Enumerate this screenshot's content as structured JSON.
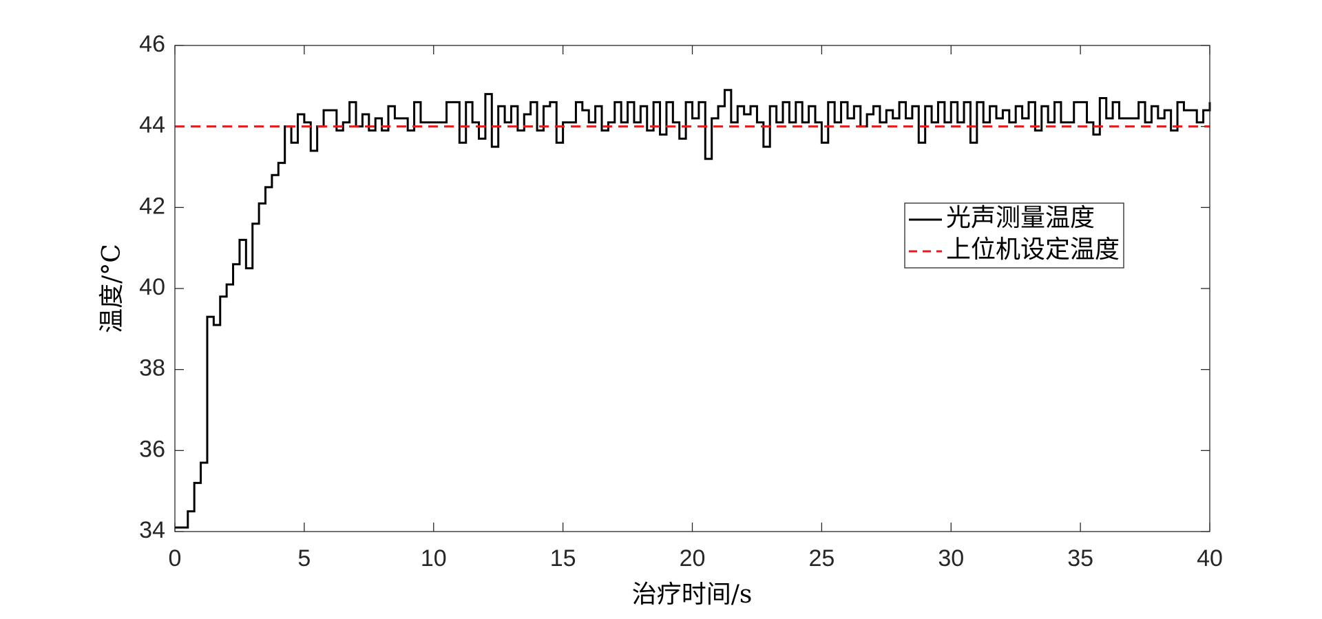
{
  "chart_data": {
    "type": "line",
    "step": true,
    "xlabel": "治疗时间/s",
    "ylabel": "温度/°C",
    "xlim": [
      0,
      40
    ],
    "xticks": [
      0,
      5,
      10,
      15,
      20,
      25,
      30,
      35,
      40
    ],
    "ylim": [
      34,
      46
    ],
    "yticks": [
      34,
      36,
      38,
      40,
      42,
      44,
      46
    ],
    "legend": "right",
    "series": [
      {
        "name": "光声测量温度",
        "color": "#000000",
        "dash": "solid",
        "x": [
          0,
          0.25,
          0.5,
          0.75,
          1,
          1.25,
          1.5,
          1.75,
          2,
          2.25,
          2.5,
          2.75,
          3,
          3.25,
          3.5,
          3.75,
          4,
          4.25,
          4.5,
          4.75,
          5,
          5.25,
          5.5,
          5.75,
          6,
          6.25,
          6.5,
          6.75,
          7,
          7.25,
          7.5,
          7.75,
          8,
          8.25,
          8.5,
          8.75,
          9,
          9.25,
          9.5,
          9.75,
          10,
          10.25,
          10.5,
          10.75,
          11,
          11.25,
          11.5,
          11.75,
          12,
          12.25,
          12.5,
          12.75,
          13,
          13.25,
          13.5,
          13.75,
          14,
          14.25,
          14.5,
          14.75,
          15,
          15.25,
          15.5,
          15.75,
          16,
          16.25,
          16.5,
          16.75,
          17,
          17.25,
          17.5,
          17.75,
          18,
          18.25,
          18.5,
          18.75,
          19,
          19.25,
          19.5,
          19.75,
          20,
          20.25,
          20.5,
          20.75,
          21,
          21.25,
          21.5,
          21.75,
          22,
          22.25,
          22.5,
          22.75,
          23,
          23.25,
          23.5,
          23.75,
          24,
          24.25,
          24.5,
          24.75,
          25,
          25.25,
          25.5,
          25.75,
          26,
          26.25,
          26.5,
          26.75,
          27,
          27.25,
          27.5,
          27.75,
          28,
          28.25,
          28.5,
          28.75,
          29,
          29.25,
          29.5,
          29.75,
          30,
          30.25,
          30.5,
          30.75,
          31,
          31.25,
          31.5,
          31.75,
          32,
          32.25,
          32.5,
          32.75,
          33,
          33.25,
          33.5,
          33.75,
          34,
          34.25,
          34.5,
          34.75,
          35,
          35.25,
          35.5,
          35.75,
          36,
          36.25,
          36.5,
          36.75,
          37,
          37.25,
          37.5,
          37.75,
          38,
          38.25,
          38.5,
          38.75,
          39,
          39.25,
          39.5,
          39.75,
          40
        ],
        "values": [
          34.1,
          34.1,
          34.5,
          35.2,
          35.7,
          39.3,
          39.1,
          39.8,
          40.1,
          40.6,
          41.2,
          40.5,
          41.6,
          42.1,
          42.5,
          42.8,
          43.1,
          44.0,
          43.6,
          44.3,
          44.1,
          43.4,
          44.0,
          44.4,
          44.4,
          43.9,
          44.1,
          44.6,
          44.0,
          44.3,
          43.9,
          44.2,
          43.9,
          44.5,
          44.2,
          44.2,
          43.9,
          44.6,
          44.1,
          44.1,
          44.1,
          44.1,
          44.6,
          44.6,
          43.6,
          44.6,
          44.1,
          43.7,
          44.8,
          43.5,
          44.5,
          44.1,
          44.5,
          43.9,
          44.3,
          44.6,
          43.9,
          44.5,
          44.6,
          43.6,
          44.1,
          44.1,
          44.6,
          44.4,
          44.1,
          44.5,
          43.9,
          44.1,
          44.6,
          44.1,
          44.6,
          44.1,
          44.5,
          43.9,
          44.6,
          43.8,
          44.6,
          44.1,
          43.7,
          44.6,
          44.2,
          44.6,
          43.2,
          44.2,
          44.5,
          44.9,
          44.1,
          44.5,
          44.3,
          44.5,
          44.1,
          43.5,
          44.5,
          44.1,
          44.6,
          44.1,
          44.6,
          44.1,
          44.5,
          44.1,
          43.6,
          44.6,
          44.1,
          44.6,
          44.2,
          44.5,
          44.0,
          44.3,
          44.5,
          44.1,
          44.4,
          44.2,
          44.6,
          44.2,
          44.5,
          43.6,
          44.5,
          44.1,
          44.6,
          44.1,
          44.6,
          44.1,
          44.6,
          43.6,
          44.6,
          44.1,
          44.5,
          44.2,
          44.4,
          44.1,
          44.5,
          44.2,
          44.6,
          43.9,
          44.5,
          44.1,
          44.6,
          44.1,
          44.1,
          44.6,
          44.6,
          44.1,
          43.8,
          44.7,
          44.2,
          44.6,
          44.2,
          44.2,
          44.2,
          44.6,
          44.1,
          44.5,
          44.2,
          44.4,
          43.9,
          44.6,
          44.4,
          44.4,
          44.1,
          44.4,
          44.6
        ]
      },
      {
        "name": "上位机设定温度",
        "color": "#e41a1c",
        "dash": "dashed",
        "x": [
          0,
          40
        ],
        "values": [
          44,
          44
        ]
      }
    ]
  }
}
